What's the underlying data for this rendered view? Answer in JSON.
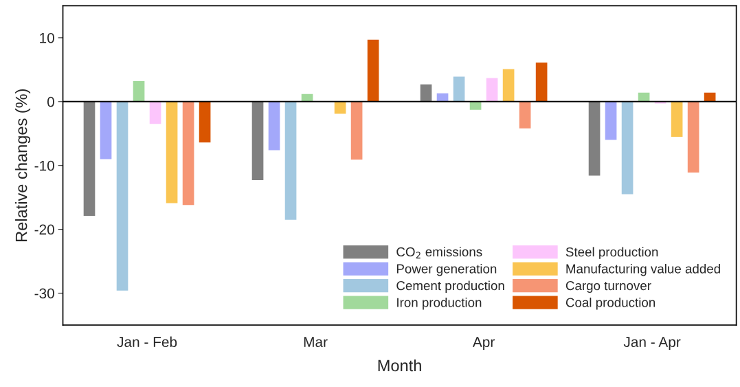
{
  "chart_data": {
    "type": "bar",
    "xlabel": "Month",
    "ylabel": "Relative changes (%)",
    "categories": [
      "Jan - Feb",
      "Mar",
      "Apr",
      "Jan - Apr"
    ],
    "series": [
      {
        "name": "CO$_{2}$ emissions",
        "color": "#808080",
        "values": [
          -17.9,
          -12.3,
          2.7,
          -11.6
        ]
      },
      {
        "name": "Power generation",
        "color": "#a3a8fa",
        "values": [
          -9.0,
          -7.6,
          1.3,
          -6.0
        ]
      },
      {
        "name": "Cement production",
        "color": "#a2c8e0",
        "values": [
          -29.6,
          -18.5,
          3.9,
          -14.5
        ]
      },
      {
        "name": "Iron production",
        "color": "#a1d99b",
        "values": [
          3.2,
          1.2,
          -1.3,
          1.4
        ]
      },
      {
        "name": "Steel production",
        "color": "#fcc5fc",
        "values": [
          -3.5,
          null,
          3.7,
          -0.3
        ]
      },
      {
        "name": "Manufacturing value added",
        "color": "#fac552",
        "values": [
          -15.9,
          -1.9,
          5.1,
          -5.5
        ]
      },
      {
        "name": "Cargo turnover",
        "color": "#f69574",
        "values": [
          -16.2,
          -9.1,
          -4.2,
          -11.1
        ]
      },
      {
        "name": "Coal production",
        "color": "#d95501",
        "values": [
          -6.4,
          9.7,
          6.1,
          1.4
        ]
      }
    ],
    "ylim": [
      -35,
      15
    ],
    "yticks": [
      -30,
      -20,
      -10,
      0,
      10
    ],
    "ref_lines": [
      {
        "axis": "y",
        "value": 0,
        "color": "#000000",
        "line_style": "solid"
      }
    ],
    "grid": false,
    "legend": "bottom right"
  }
}
